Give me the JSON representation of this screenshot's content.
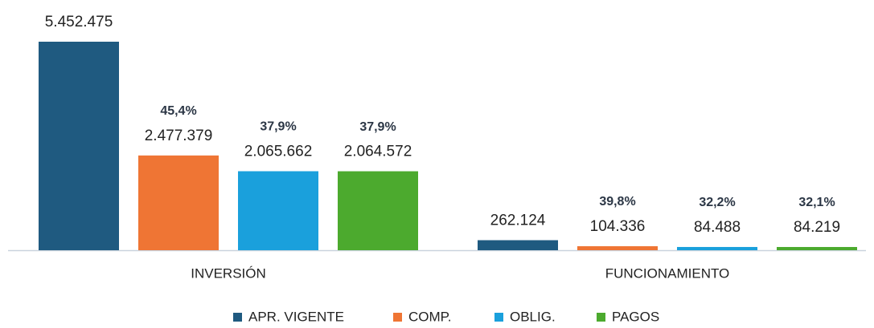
{
  "chart_data": {
    "type": "bar",
    "categories": [
      "INVERSIÓN",
      "FUNCIONAMIENTO"
    ],
    "series": [
      {
        "name": "APR. VIGENTE",
        "color": "#1f5a80",
        "values": [
          5452475,
          262124
        ],
        "value_labels": [
          "5.452.475",
          "262.124"
        ]
      },
      {
        "name": "COMP.",
        "color": "#ef7534",
        "values": [
          2477379,
          104336
        ],
        "value_labels": [
          "2.477.379",
          "104.336"
        ],
        "percent_labels": [
          "45,4%",
          "39,8%"
        ]
      },
      {
        "name": "OBLIG.",
        "color": "#1aa0dc",
        "values": [
          2065662,
          84488
        ],
        "value_labels": [
          "2.065.662",
          "84.488"
        ],
        "percent_labels": [
          "37,9%",
          "32,2%"
        ]
      },
      {
        "name": "PAGOS",
        "color": "#4caa2e",
        "values": [
          2064572,
          84219
        ],
        "value_labels": [
          "2.064.572",
          "84.219"
        ],
        "percent_labels": [
          "37,9%",
          "32,1%"
        ]
      }
    ],
    "legend": "bottom"
  }
}
